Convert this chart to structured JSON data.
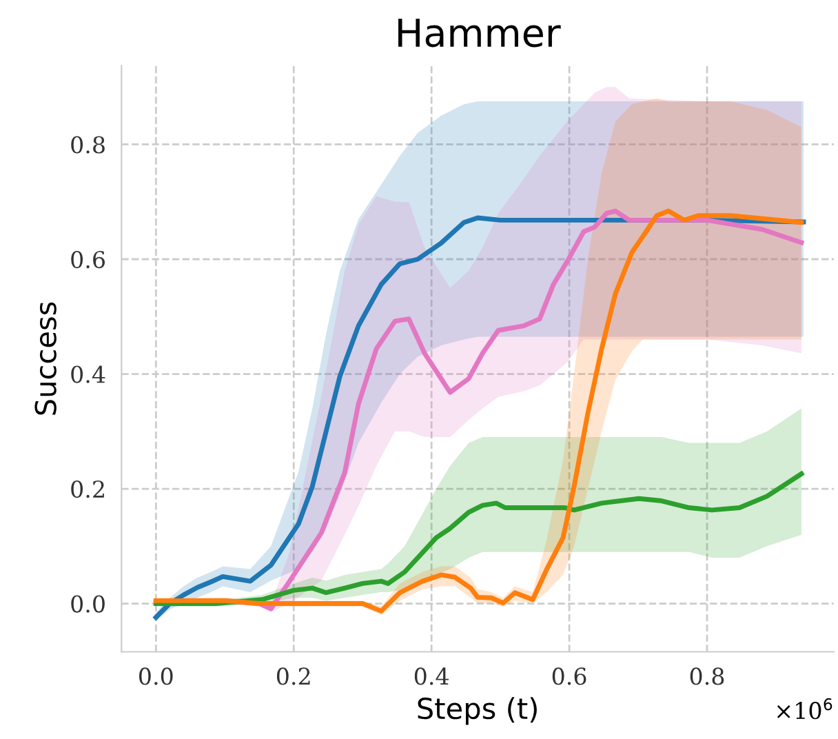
{
  "chart_data": {
    "type": "line",
    "title": "Hammer",
    "xlabel": "Steps (t)",
    "ylabel": "Success",
    "annotations": [
      "×10$^{6}$"
    ],
    "xlim": [
      -0.05,
      0.984
    ],
    "ylim": [
      -0.084,
      0.937
    ],
    "xticks": [
      {
        "value": 0,
        "label": "0.0"
      },
      0.2,
      0.4,
      0.6,
      0.8
    ],
    "yticks": [
      {
        "value": 0,
        "label": "0.0"
      },
      0.2,
      0.4,
      0.6,
      0.8
    ],
    "grid": true,
    "line_style": "solid",
    "legend": false,
    "series": [
      {
        "color": "#1f77b4",
        "x": [
          0,
          0.02,
          0.04,
          0.06,
          0.08,
          0.097,
          0.137,
          0.167,
          0.207,
          0.227,
          0.247,
          0.267,
          0.294,
          0.327,
          0.354,
          0.38,
          0.414,
          0.447,
          0.467,
          0.5,
          0.6,
          0.7,
          0.8,
          0.94
        ],
        "values": [
          -0.024,
          0.0,
          0.015,
          0.028,
          0.038,
          0.047,
          0.039,
          0.067,
          0.139,
          0.204,
          0.3,
          0.396,
          0.484,
          0.556,
          0.592,
          0.6,
          0.628,
          0.664,
          0.672,
          0.668,
          0.668,
          0.668,
          0.668,
          0.665
        ],
        "lower": [
          -0.03,
          -0.01,
          0.0,
          0.01,
          0.02,
          0.03,
          0.02,
          0.04,
          0.06,
          0.09,
          0.13,
          0.19,
          0.28,
          0.35,
          0.4,
          0.43,
          0.45,
          0.46,
          0.465,
          0.465,
          0.465,
          0.465,
          0.465,
          0.465
        ],
        "upper": [
          -0.015,
          0.01,
          0.03,
          0.045,
          0.055,
          0.065,
          0.06,
          0.1,
          0.23,
          0.34,
          0.47,
          0.58,
          0.67,
          0.73,
          0.78,
          0.82,
          0.85,
          0.87,
          0.875,
          0.875,
          0.875,
          0.875,
          0.875,
          0.875
        ]
      },
      {
        "color": "#e377c2",
        "x": [
          0,
          0.05,
          0.1,
          0.15,
          0.167,
          0.194,
          0.24,
          0.274,
          0.294,
          0.32,
          0.347,
          0.367,
          0.39,
          0.427,
          0.454,
          0.474,
          0.497,
          0.534,
          0.557,
          0.577,
          0.597,
          0.621,
          0.637,
          0.654,
          0.667,
          0.687,
          0.8,
          0.88,
          0.937
        ],
        "values": [
          0.003,
          0.005,
          0.005,
          0.0,
          -0.009,
          0.039,
          0.123,
          0.228,
          0.348,
          0.444,
          0.492,
          0.496,
          0.436,
          0.368,
          0.392,
          0.436,
          0.476,
          0.484,
          0.496,
          0.556,
          0.596,
          0.648,
          0.656,
          0.68,
          0.684,
          0.668,
          0.668,
          0.652,
          0.629
        ],
        "lower": [
          0.0,
          0.0,
          0.0,
          -0.005,
          -0.015,
          0.0,
          0.04,
          0.12,
          0.17,
          0.24,
          0.3,
          0.3,
          0.29,
          0.29,
          0.32,
          0.34,
          0.36,
          0.37,
          0.38,
          0.4,
          0.42,
          0.46,
          0.46,
          0.46,
          0.46,
          0.46,
          0.46,
          0.45,
          0.436
        ],
        "upper": [
          0.006,
          0.01,
          0.01,
          0.005,
          0.0,
          0.09,
          0.36,
          0.58,
          0.66,
          0.71,
          0.7,
          0.7,
          0.62,
          0.55,
          0.58,
          0.62,
          0.68,
          0.74,
          0.78,
          0.81,
          0.84,
          0.87,
          0.89,
          0.9,
          0.9,
          0.88,
          0.875,
          0.875,
          0.875
        ]
      },
      {
        "color": "#2ca02c",
        "x": [
          0,
          0.087,
          0.154,
          0.2,
          0.227,
          0.247,
          0.274,
          0.3,
          0.327,
          0.337,
          0.361,
          0.407,
          0.427,
          0.454,
          0.474,
          0.494,
          0.507,
          0.594,
          0.607,
          0.647,
          0.701,
          0.734,
          0.774,
          0.807,
          0.847,
          0.887,
          0.937
        ],
        "values": [
          0.0,
          0.0,
          0.007,
          0.023,
          0.027,
          0.019,
          0.027,
          0.035,
          0.039,
          0.035,
          0.055,
          0.115,
          0.131,
          0.159,
          0.171,
          0.175,
          0.167,
          0.167,
          0.163,
          0.175,
          0.183,
          0.179,
          0.167,
          0.163,
          0.167,
          0.187,
          0.226
        ],
        "lower": [
          -0.005,
          -0.005,
          0.0,
          0.01,
          0.01,
          0.005,
          0.01,
          0.015,
          0.02,
          0.02,
          0.025,
          0.05,
          0.06,
          0.08,
          0.09,
          0.09,
          0.09,
          0.09,
          0.09,
          0.09,
          0.09,
          0.09,
          0.09,
          0.08,
          0.08,
          0.1,
          0.12
        ],
        "upper": [
          0.005,
          0.005,
          0.015,
          0.035,
          0.045,
          0.04,
          0.05,
          0.055,
          0.06,
          0.07,
          0.1,
          0.2,
          0.24,
          0.28,
          0.29,
          0.29,
          0.29,
          0.29,
          0.29,
          0.29,
          0.29,
          0.29,
          0.28,
          0.28,
          0.28,
          0.3,
          0.34
        ]
      },
      {
        "color": "#ff7f0e",
        "x": [
          0,
          0.1,
          0.15,
          0.2,
          0.3,
          0.327,
          0.354,
          0.387,
          0.414,
          0.434,
          0.457,
          0.467,
          0.487,
          0.504,
          0.521,
          0.547,
          0.567,
          0.591,
          0.607,
          0.627,
          0.647,
          0.667,
          0.691,
          0.707,
          0.727,
          0.744,
          0.767,
          0.787,
          0.834,
          0.887,
          0.937
        ],
        "values": [
          0.005,
          0.005,
          0.0,
          0.0,
          0.0,
          -0.013,
          0.019,
          0.039,
          0.05,
          0.046,
          0.027,
          0.011,
          0.01,
          0.001,
          0.019,
          0.007,
          0.059,
          0.115,
          0.204,
          0.332,
          0.444,
          0.54,
          0.612,
          0.64,
          0.676,
          0.684,
          0.668,
          0.676,
          0.676,
          0.67,
          0.664
        ],
        "lower": [
          0.0,
          0.0,
          -0.005,
          -0.005,
          -0.005,
          -0.02,
          0.005,
          0.025,
          0.03,
          0.03,
          0.01,
          0.0,
          0.0,
          -0.005,
          0.005,
          0.0,
          0.02,
          0.05,
          0.1,
          0.2,
          0.3,
          0.39,
          0.44,
          0.46,
          0.46,
          0.46,
          0.46,
          0.46,
          0.46,
          0.46,
          0.46
        ],
        "upper": [
          0.01,
          0.01,
          0.005,
          0.005,
          0.005,
          -0.005,
          0.035,
          0.055,
          0.065,
          0.065,
          0.045,
          0.025,
          0.02,
          0.01,
          0.03,
          0.02,
          0.11,
          0.25,
          0.4,
          0.6,
          0.75,
          0.84,
          0.87,
          0.875,
          0.88,
          0.875,
          0.875,
          0.875,
          0.875,
          0.86,
          0.83
        ]
      }
    ]
  }
}
